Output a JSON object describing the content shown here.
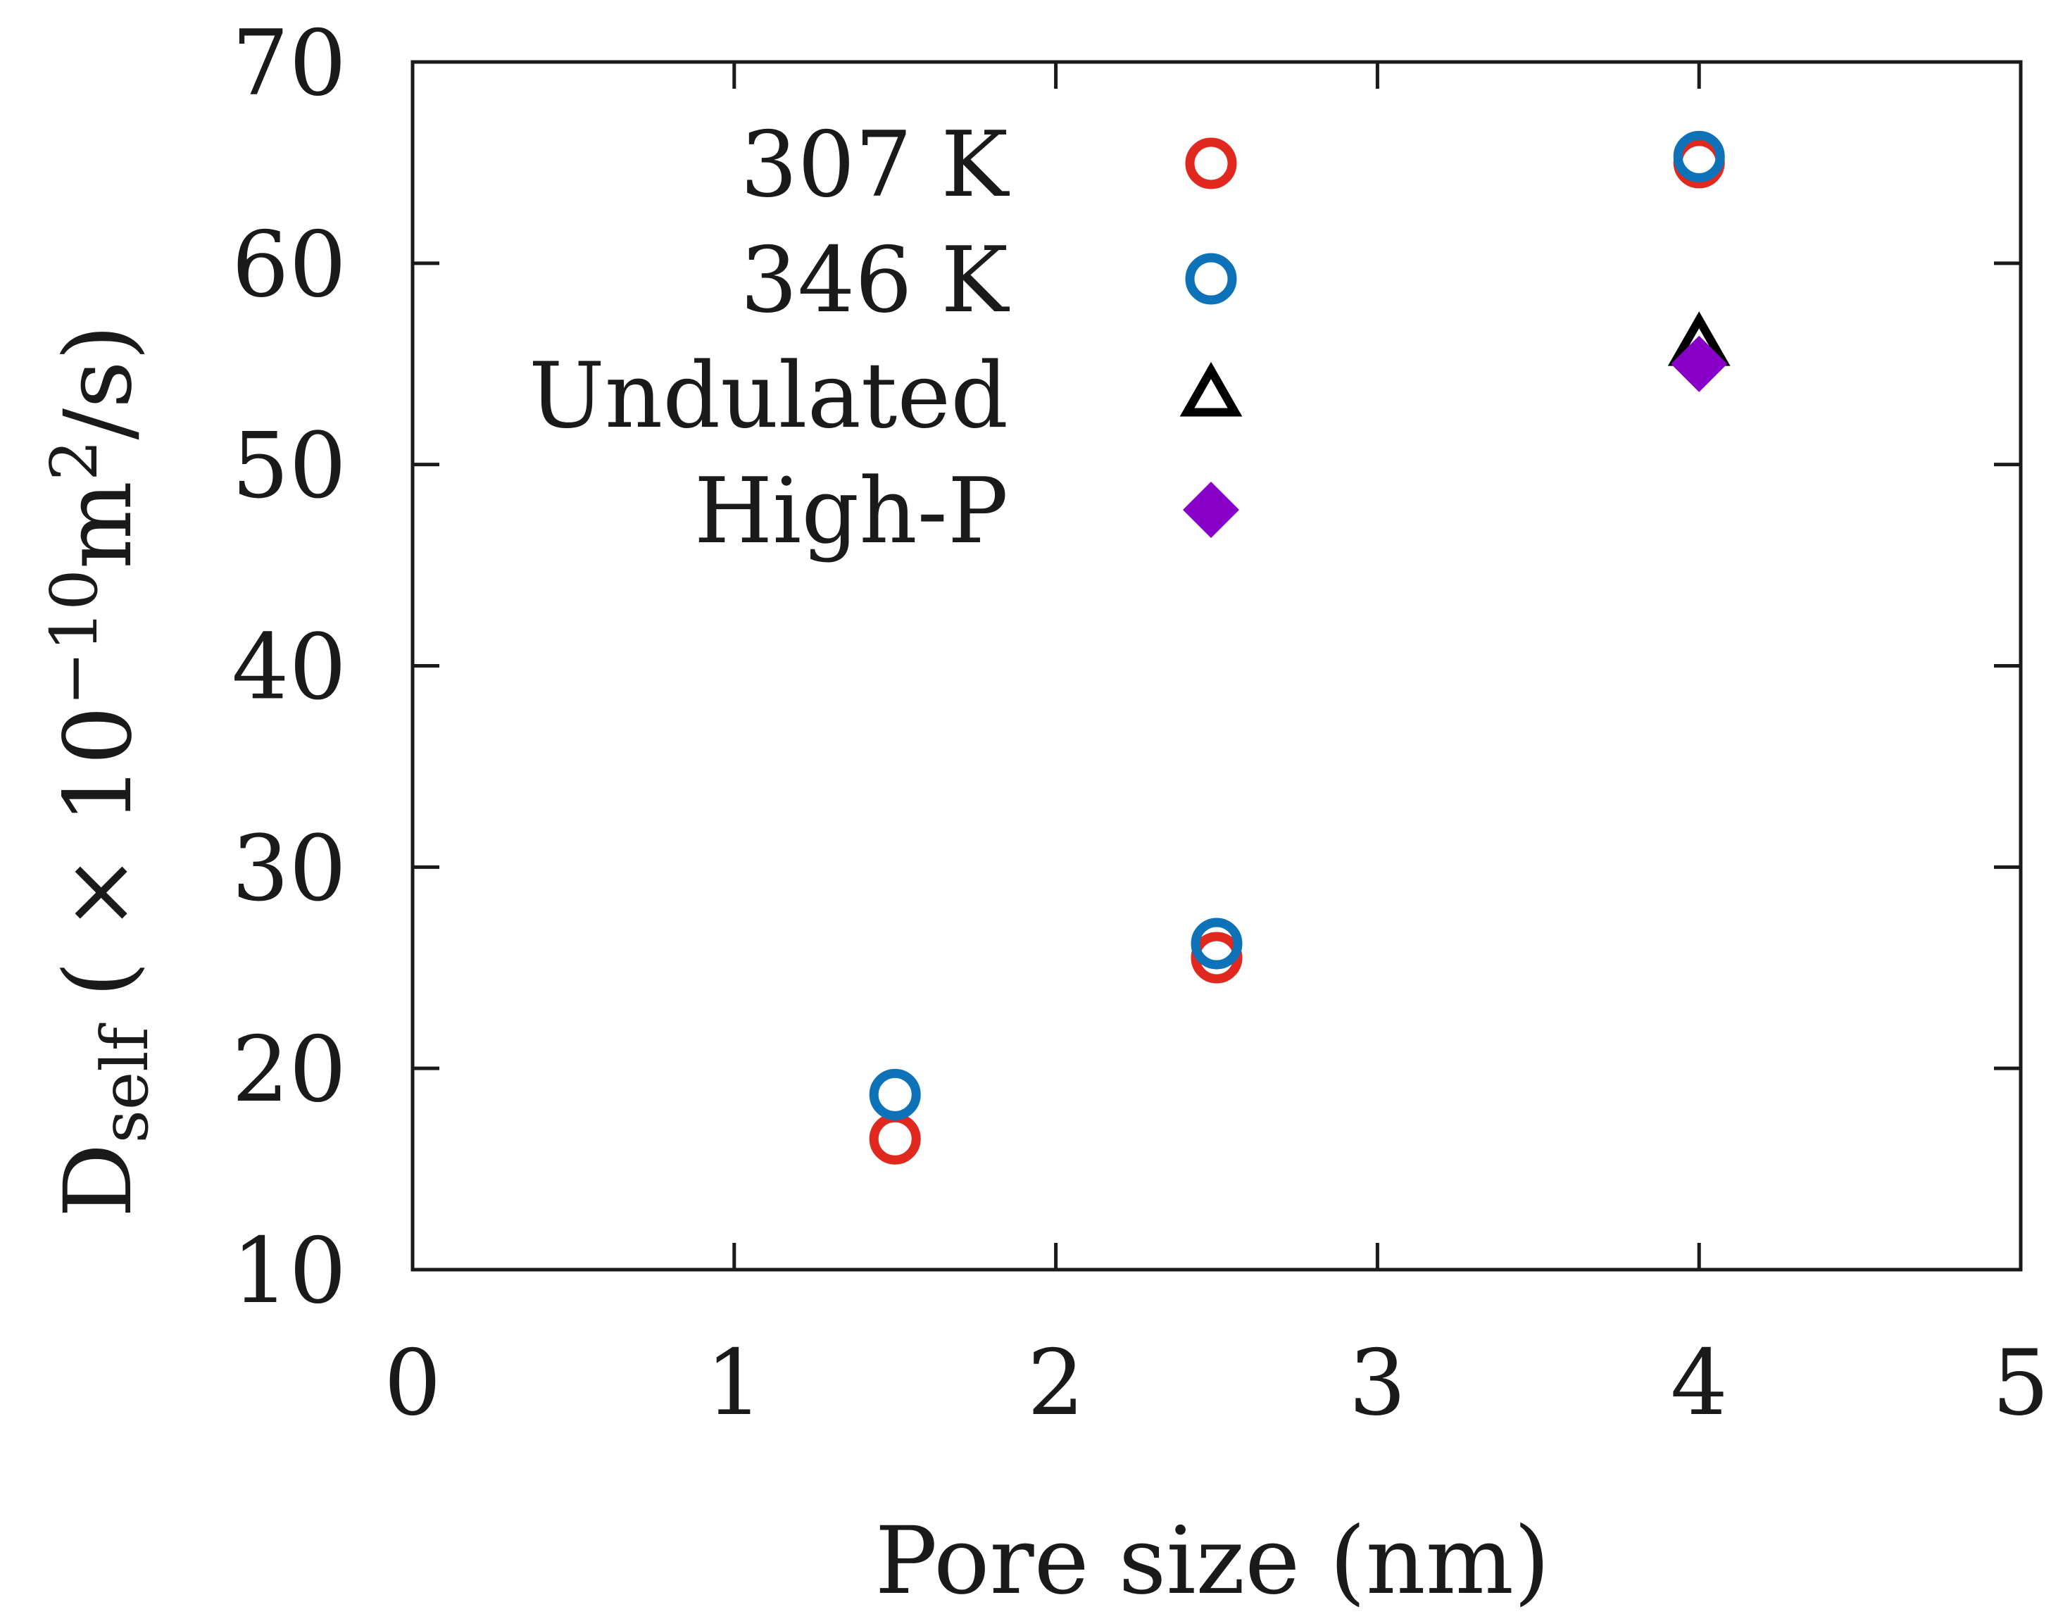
{
  "chart_data": {
    "type": "scatter",
    "xlabel": "Pore size (nm)",
    "ylabel": {
      "base": "D",
      "base_sub": "self",
      "prefix": " ( × 10",
      "exp": "−10",
      "unit": "m",
      "unit_exp": "2",
      "suffix": "/s)"
    },
    "xlim": [
      0,
      5
    ],
    "ylim": [
      10,
      70
    ],
    "xticks": [
      0,
      1,
      2,
      3,
      4,
      5
    ],
    "yticks": [
      10,
      20,
      30,
      40,
      50,
      60,
      70
    ],
    "grid": false,
    "legend_position": "top-left",
    "series": [
      {
        "name": "307 K",
        "marker": "open-circle",
        "color": "#e0281e",
        "x": [
          1.5,
          2.5,
          4.0
        ],
        "y": [
          16.5,
          25.5,
          65.0
        ]
      },
      {
        "name": "346 K",
        "marker": "open-circle",
        "color": "#0e72b8",
        "x": [
          1.5,
          2.5,
          4.0
        ],
        "y": [
          18.7,
          26.2,
          65.3
        ]
      },
      {
        "name": "Undulated",
        "marker": "open-triangle",
        "color": "#000000",
        "x": [
          4.0
        ],
        "y": [
          56.0
        ]
      },
      {
        "name": "High-P",
        "marker": "filled-diamond",
        "color": "#8800c8",
        "x": [
          4.0
        ],
        "y": [
          55.0
        ]
      }
    ]
  }
}
